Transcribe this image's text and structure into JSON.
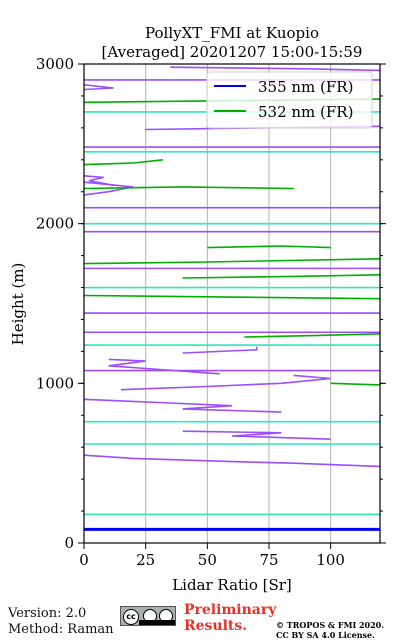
{
  "chart_data": {
    "type": "line",
    "title": "PollyXT_FMI at Kuopio",
    "subtitle": "[Averaged] 20201207 15:00-15:59",
    "xlabel": "Lidar Ratio [Sr]",
    "ylabel": "Height (m)",
    "xlim": [
      0,
      120
    ],
    "ylim": [
      0,
      3000
    ],
    "xticks": [
      "0",
      "25",
      "50",
      "75",
      "100"
    ],
    "yticks": [
      "0",
      "1000",
      "2000",
      "3000"
    ],
    "grid": "vertical",
    "legend_position": "top-right",
    "series": [
      {
        "name": "355 nm (FR)",
        "color": "#0000ff",
        "aerosol_color": "#9b4dff",
        "constant_lines": [
          {
            "height": 85,
            "x_range": [
              0,
              120
            ],
            "color": "#0000ff"
          },
          {
            "height": 1080,
            "x_range": [
              0,
              120
            ],
            "color": "#9b4dff"
          },
          {
            "height": 1320,
            "x_range": [
              0,
              120
            ],
            "color": "#9b4dff"
          },
          {
            "height": 1440,
            "x_range": [
              0,
              120
            ],
            "color": "#9b4dff"
          },
          {
            "height": 1720,
            "x_range": [
              0,
              120
            ],
            "color": "#9b4dff"
          },
          {
            "height": 1950,
            "x_range": [
              0,
              120
            ],
            "color": "#9b4dff"
          },
          {
            "height": 2100,
            "x_range": [
              0,
              120
            ],
            "color": "#9b4dff"
          },
          {
            "height": 2480,
            "x_range": [
              0,
              120
            ],
            "color": "#9b4dff"
          },
          {
            "height": 2900,
            "x_range": [
              0,
              120
            ],
            "color": "#9b4dff"
          }
        ],
        "profiles": [
          {
            "points": [
              [
                0,
                550
              ],
              [
                20,
                530
              ],
              [
                60,
                510
              ],
              [
                85,
                500
              ],
              [
                120,
                480
              ]
            ]
          },
          {
            "points": [
              [
                0,
                900
              ],
              [
                30,
                880
              ],
              [
                60,
                860
              ],
              [
                40,
                840
              ],
              [
                80,
                820
              ]
            ]
          },
          {
            "points": [
              [
                40,
                700
              ],
              [
                80,
                690
              ],
              [
                60,
                670
              ],
              [
                100,
                650
              ]
            ]
          },
          {
            "points": [
              [
                10,
                1150
              ],
              [
                25,
                1140
              ],
              [
                10,
                1110
              ],
              [
                55,
                1060
              ]
            ]
          },
          {
            "points": [
              [
                15,
                960
              ],
              [
                50,
                980
              ],
              [
                80,
                1000
              ],
              [
                100,
                1030
              ],
              [
                85,
                1050
              ]
            ]
          },
          {
            "points": [
              [
                40,
                1190
              ],
              [
                70,
                1210
              ],
              [
                70,
                1230
              ]
            ]
          },
          {
            "points": [
              [
                0,
                2180
              ],
              [
                10,
                2200
              ],
              [
                20,
                2230
              ],
              [
                0,
                2260
              ]
            ]
          },
          {
            "points": [
              [
                0,
                2300
              ],
              [
                8,
                2290
              ],
              [
                2,
                2270
              ],
              [
                12,
                2240
              ]
            ]
          },
          {
            "points": [
              [
                0,
                2840
              ],
              [
                12,
                2850
              ],
              [
                0,
                2870
              ]
            ]
          },
          {
            "points": [
              [
                35,
                2980
              ],
              [
                90,
                2970
              ],
              [
                120,
                2960
              ]
            ]
          },
          {
            "points": [
              [
                25,
                2590
              ],
              [
                70,
                2600
              ],
              [
                120,
                2610
              ]
            ]
          }
        ]
      },
      {
        "name": "532 nm (FR)",
        "color": "#00b000",
        "aerosol_color": "#2ee8b8",
        "constant_lines": [
          {
            "height": 180,
            "x_range": [
              0,
              120
            ],
            "color": "#2ee8b8"
          },
          {
            "height": 620,
            "x_range": [
              0,
              120
            ],
            "color": "#2ee8b8"
          },
          {
            "height": 760,
            "x_range": [
              0,
              120
            ],
            "color": "#2ee8b8"
          },
          {
            "height": 1240,
            "x_range": [
              0,
              120
            ],
            "color": "#2ee8b8"
          },
          {
            "height": 1600,
            "x_range": [
              0,
              120
            ],
            "color": "#2ee8b8"
          },
          {
            "height": 2000,
            "x_range": [
              0,
              120
            ],
            "color": "#2ee8b8"
          },
          {
            "height": 2450,
            "x_range": [
              0,
              120
            ],
            "color": "#2ee8b8"
          },
          {
            "height": 2700,
            "x_range": [
              0,
              120
            ],
            "color": "#2ee8b8"
          }
        ],
        "profiles": [
          {
            "points": [
              [
                0,
                1550
              ],
              [
                60,
                1540
              ],
              [
                120,
                1530
              ]
            ]
          },
          {
            "points": [
              [
                0,
                1750
              ],
              [
                50,
                1760
              ],
              [
                120,
                1780
              ]
            ]
          },
          {
            "points": [
              [
                40,
                1660
              ],
              [
                85,
                1670
              ],
              [
                120,
                1680
              ]
            ]
          },
          {
            "points": [
              [
                65,
                1290
              ],
              [
                95,
                1300
              ],
              [
                120,
                1310
              ]
            ]
          },
          {
            "points": [
              [
                0,
                2370
              ],
              [
                20,
                2380
              ],
              [
                32,
                2400
              ]
            ]
          },
          {
            "points": [
              [
                0,
                2220
              ],
              [
                40,
                2230
              ],
              [
                85,
                2220
              ]
            ]
          },
          {
            "points": [
              [
                0,
                2760
              ],
              [
                60,
                2770
              ],
              [
                120,
                2780
              ]
            ]
          },
          {
            "points": [
              [
                50,
                1850
              ],
              [
                80,
                1860
              ],
              [
                100,
                1850
              ]
            ]
          },
          {
            "points": [
              [
                100,
                1000
              ],
              [
                120,
                990
              ]
            ]
          }
        ]
      }
    ]
  },
  "footer": {
    "version": "Version: 2.0",
    "method": "Method: Raman",
    "badge_text": "cc",
    "preliminary_line1": "Preliminary",
    "preliminary_line2": "Results.",
    "copyright_line1": "© TROPOS & FMI 2020.",
    "copyright_line2": "CC BY SA 4.0 License."
  }
}
